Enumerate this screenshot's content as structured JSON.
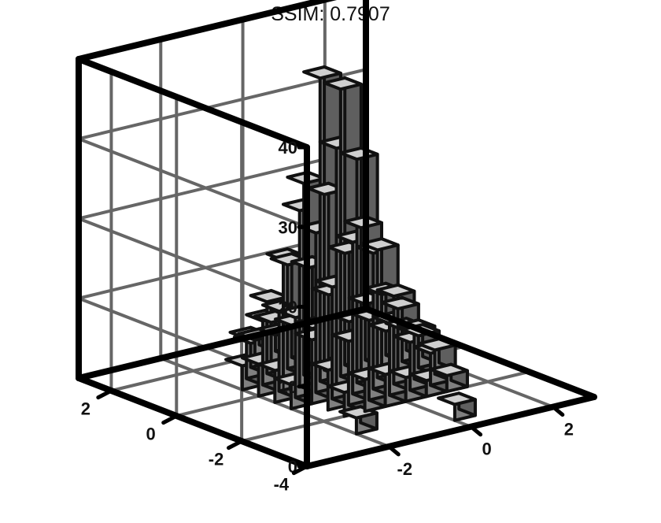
{
  "title": "SSIM: 0.7907",
  "colors": {
    "axes": "#000000",
    "grid": "#666666",
    "bar_face": "#808080",
    "bar_top": "#cfcfcf",
    "bar_side": "#5f5f5f",
    "bar_edge": "#111111"
  },
  "chart_data": {
    "type": "bar3d-histogram",
    "title": "SSIM: 0.7907",
    "xlabel": "",
    "ylabel": "",
    "zlabel": "",
    "xlim": [
      -4,
      3
    ],
    "ylim": [
      -4,
      3
    ],
    "zlim": [
      0,
      40
    ],
    "x_ticks": [
      "-2",
      "0",
      "2"
    ],
    "y_ticks": [
      "-4",
      "-2",
      "0",
      "2"
    ],
    "z_ticks": [
      "0",
      "10",
      "20",
      "30",
      "40"
    ],
    "grid": true,
    "bin_width": 0.5,
    "bars": [
      {
        "x": -1.75,
        "y": -2.75,
        "z": 2
      },
      {
        "x": 0.25,
        "y": -3.25,
        "z": 2
      },
      {
        "x": -1.25,
        "y": -1.75,
        "z": 3
      },
      {
        "x": -0.75,
        "y": -1.75,
        "z": 4
      },
      {
        "x": -0.25,
        "y": -1.75,
        "z": 4
      },
      {
        "x": 0.25,
        "y": -1.75,
        "z": 3
      },
      {
        "x": 0.75,
        "y": -1.75,
        "z": 2
      },
      {
        "x": 1.25,
        "y": -1.75,
        "z": 2
      },
      {
        "x": -1.25,
        "y": -1.25,
        "z": 5
      },
      {
        "x": -0.75,
        "y": -1.25,
        "z": 8
      },
      {
        "x": -0.25,
        "y": -1.25,
        "z": 10
      },
      {
        "x": 0.25,
        "y": -1.25,
        "z": 9
      },
      {
        "x": 0.75,
        "y": -1.25,
        "z": 6
      },
      {
        "x": 1.25,
        "y": -1.25,
        "z": 4
      },
      {
        "x": -1.75,
        "y": -0.75,
        "z": 3
      },
      {
        "x": -1.25,
        "y": -0.75,
        "z": 8
      },
      {
        "x": -0.75,
        "y": -0.75,
        "z": 14
      },
      {
        "x": -0.25,
        "y": -0.75,
        "z": 19
      },
      {
        "x": 0.25,
        "y": -0.75,
        "z": 17
      },
      {
        "x": 0.75,
        "y": -0.75,
        "z": 11
      },
      {
        "x": 1.25,
        "y": -0.75,
        "z": 6
      },
      {
        "x": 1.75,
        "y": -0.75,
        "z": 3
      },
      {
        "x": -1.75,
        "y": -0.25,
        "z": 4
      },
      {
        "x": -1.25,
        "y": -0.25,
        "z": 10
      },
      {
        "x": -0.75,
        "y": -0.25,
        "z": 20
      },
      {
        "x": -0.25,
        "y": -0.25,
        "z": 30
      },
      {
        "x": 0.25,
        "y": -0.25,
        "z": 28
      },
      {
        "x": 0.75,
        "y": -0.25,
        "z": 16
      },
      {
        "x": 1.25,
        "y": -0.25,
        "z": 8
      },
      {
        "x": 1.75,
        "y": -0.25,
        "z": 4
      },
      {
        "x": -1.75,
        "y": 0.25,
        "z": 4
      },
      {
        "x": -1.25,
        "y": 0.25,
        "z": 10
      },
      {
        "x": -0.75,
        "y": 0.25,
        "z": 22
      },
      {
        "x": -0.25,
        "y": 0.25,
        "z": 38
      },
      {
        "x": 0.25,
        "y": 0.25,
        "z": 36
      },
      {
        "x": 0.75,
        "y": 0.25,
        "z": 18
      },
      {
        "x": 1.25,
        "y": 0.25,
        "z": 9
      },
      {
        "x": 1.75,
        "y": 0.25,
        "z": 4
      },
      {
        "x": -1.75,
        "y": 0.75,
        "z": 3
      },
      {
        "x": -1.25,
        "y": 0.75,
        "z": 8
      },
      {
        "x": -0.75,
        "y": 0.75,
        "z": 15
      },
      {
        "x": -0.25,
        "y": 0.75,
        "z": 24
      },
      {
        "x": 0.25,
        "y": 0.75,
        "z": 22
      },
      {
        "x": 0.75,
        "y": 0.75,
        "z": 14
      },
      {
        "x": 1.25,
        "y": 0.75,
        "z": 7
      },
      {
        "x": 1.75,
        "y": 0.75,
        "z": 3
      },
      {
        "x": -1.25,
        "y": 1.25,
        "z": 5
      },
      {
        "x": -0.75,
        "y": 1.25,
        "z": 9
      },
      {
        "x": -0.25,
        "y": 1.25,
        "z": 13
      },
      {
        "x": 0.25,
        "y": 1.25,
        "z": 12
      },
      {
        "x": 0.75,
        "y": 1.25,
        "z": 8
      },
      {
        "x": 1.25,
        "y": 1.25,
        "z": 4
      },
      {
        "x": -0.75,
        "y": 1.75,
        "z": 3
      },
      {
        "x": -0.25,
        "y": 1.75,
        "z": 5
      },
      {
        "x": 0.25,
        "y": 1.75,
        "z": 4
      },
      {
        "x": 0.75,
        "y": 1.75,
        "z": 3
      },
      {
        "x": -0.25,
        "y": 2.25,
        "z": 2
      },
      {
        "x": 0.25,
        "y": 2.25,
        "z": 2
      }
    ]
  }
}
